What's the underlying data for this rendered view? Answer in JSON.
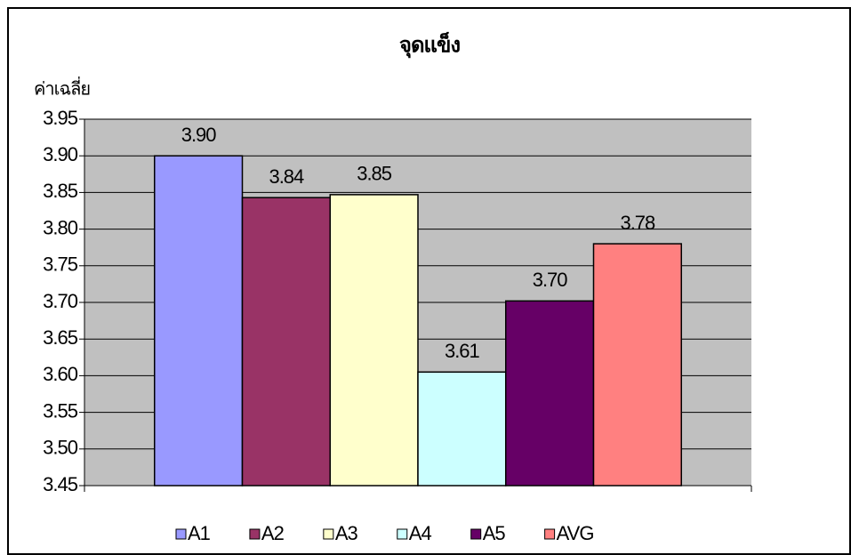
{
  "chart_data": {
    "type": "bar",
    "title": "จุดแข็ง",
    "y_label": "ค่าเฉลี่ย",
    "categories": [
      null
    ],
    "series": [
      {
        "name": "A1",
        "color": "#9999ff",
        "values": [
          3.9
        ],
        "value_labels": [
          "3.90"
        ]
      },
      {
        "name": "A2",
        "color": "#993366",
        "values": [
          3.843
        ],
        "value_labels": [
          "3.84"
        ]
      },
      {
        "name": "A3",
        "color": "#ffffcc",
        "values": [
          3.847
        ],
        "value_labels": [
          "3.85"
        ]
      },
      {
        "name": "A4",
        "color": "#ccffff",
        "values": [
          3.605
        ],
        "value_labels": [
          "3.61"
        ]
      },
      {
        "name": "A5",
        "color": "#660066",
        "values": [
          3.702
        ],
        "value_labels": [
          "3.70"
        ]
      },
      {
        "name": "AVG",
        "color": "#ff8080",
        "values": [
          3.78
        ],
        "value_labels": [
          "3.78"
        ]
      }
    ],
    "ylim": [
      3.45,
      3.95
    ],
    "yticks": [
      3.45,
      {
        "value": 3.5,
        "label": "3.50"
      },
      3.55,
      {
        "value": 3.6,
        "label": "3.60"
      },
      3.65,
      {
        "value": 3.7,
        "label": "3.70"
      },
      3.75,
      {
        "value": 3.8,
        "label": "3.80"
      },
      3.85,
      {
        "value": 3.9,
        "label": "3.90"
      },
      3.95
    ],
    "grid": true,
    "plot_background": "#c0c0c0",
    "legend": "bottom"
  }
}
